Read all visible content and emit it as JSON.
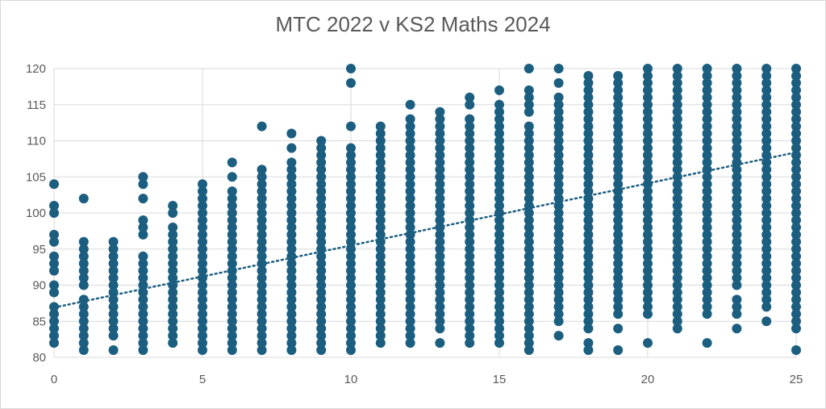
{
  "chart_data": {
    "type": "scatter",
    "title": "MTC 2022 v KS2 Maths 2024",
    "xlabel": "",
    "ylabel": "",
    "xlim": [
      0,
      25
    ],
    "ylim": [
      80,
      120
    ],
    "x_ticks": [
      "0",
      "5",
      "10",
      "15",
      "20",
      "25"
    ],
    "y_ticks": [
      "80",
      "85",
      "90",
      "95",
      "100",
      "105",
      "110",
      "115",
      "120"
    ],
    "grid": true,
    "legend": "none",
    "marker_color": "#1b5e80",
    "trendline": {
      "type": "linear",
      "style": "dotted",
      "color": "#1b5e80",
      "x": [
        0,
        25
      ],
      "y": [
        86.9,
        108.4
      ]
    },
    "columns": [
      {
        "x": 0,
        "y": [
          82,
          83,
          84,
          85,
          86,
          87,
          89,
          90,
          92,
          93,
          94,
          96,
          97,
          100,
          101,
          104
        ]
      },
      {
        "x": 1,
        "y": [
          81,
          82,
          83,
          84,
          85,
          86,
          87,
          88,
          90,
          91,
          92,
          93,
          94,
          95,
          96,
          102
        ]
      },
      {
        "x": 2,
        "y": [
          81,
          83,
          84,
          85,
          86,
          87,
          88,
          89,
          90,
          91,
          92,
          93,
          94,
          95,
          96
        ]
      },
      {
        "x": 3,
        "y": [
          81,
          82,
          83,
          84,
          85,
          86,
          87,
          88,
          89,
          90,
          91,
          92,
          93,
          94,
          97,
          98,
          99,
          102,
          104,
          105
        ]
      },
      {
        "x": 4,
        "y": [
          82,
          83,
          84,
          85,
          86,
          87,
          88,
          89,
          90,
          91,
          92,
          93,
          94,
          95,
          96,
          97,
          98,
          100,
          101
        ]
      },
      {
        "x": 5,
        "y": [
          81,
          82,
          83,
          84,
          85,
          86,
          87,
          88,
          89,
          90,
          91,
          92,
          93,
          94,
          95,
          96,
          97,
          98,
          99,
          100,
          101,
          102,
          103,
          104
        ]
      },
      {
        "x": 6,
        "y": [
          81,
          82,
          83,
          84,
          85,
          86,
          87,
          88,
          89,
          90,
          91,
          92,
          93,
          94,
          95,
          96,
          97,
          98,
          99,
          100,
          101,
          102,
          103,
          105,
          107
        ]
      },
      {
        "x": 7,
        "y": [
          81,
          82,
          83,
          84,
          85,
          86,
          87,
          88,
          89,
          90,
          91,
          92,
          93,
          94,
          95,
          96,
          97,
          98,
          99,
          100,
          101,
          102,
          103,
          104,
          105,
          106,
          112
        ]
      },
      {
        "x": 8,
        "y": [
          81,
          82,
          83,
          84,
          85,
          86,
          87,
          88,
          89,
          90,
          91,
          92,
          93,
          94,
          95,
          96,
          97,
          98,
          99,
          100,
          101,
          102,
          103,
          104,
          105,
          106,
          107,
          109,
          111
        ]
      },
      {
        "x": 9,
        "y": [
          81,
          82,
          83,
          84,
          85,
          86,
          87,
          88,
          89,
          90,
          91,
          92,
          93,
          94,
          95,
          96,
          97,
          98,
          99,
          100,
          101,
          102,
          103,
          104,
          105,
          106,
          107,
          108,
          109,
          110
        ]
      },
      {
        "x": 10,
        "y": [
          81,
          82,
          83,
          84,
          85,
          86,
          87,
          88,
          89,
          90,
          91,
          92,
          93,
          94,
          95,
          96,
          97,
          98,
          99,
          100,
          101,
          102,
          103,
          104,
          105,
          106,
          107,
          108,
          109,
          112,
          118,
          120
        ]
      },
      {
        "x": 11,
        "y": [
          82,
          83,
          84,
          85,
          86,
          87,
          88,
          89,
          90,
          91,
          92,
          93,
          94,
          95,
          96,
          97,
          98,
          99,
          100,
          101,
          102,
          103,
          104,
          105,
          106,
          107,
          108,
          109,
          110,
          111,
          112
        ]
      },
      {
        "x": 12,
        "y": [
          82,
          83,
          84,
          85,
          86,
          87,
          88,
          89,
          90,
          91,
          92,
          93,
          94,
          95,
          96,
          97,
          98,
          99,
          100,
          101,
          102,
          103,
          104,
          105,
          106,
          107,
          108,
          109,
          110,
          111,
          112,
          113,
          115
        ]
      },
      {
        "x": 13,
        "y": [
          82,
          84,
          85,
          86,
          87,
          88,
          89,
          90,
          91,
          92,
          93,
          94,
          95,
          96,
          97,
          98,
          99,
          100,
          101,
          102,
          103,
          104,
          105,
          106,
          107,
          108,
          109,
          110,
          111,
          112,
          113,
          114
        ]
      },
      {
        "x": 14,
        "y": [
          82,
          83,
          84,
          85,
          86,
          87,
          88,
          89,
          90,
          91,
          92,
          93,
          94,
          95,
          96,
          97,
          98,
          99,
          100,
          101,
          102,
          103,
          104,
          105,
          106,
          107,
          108,
          109,
          110,
          111,
          112,
          113,
          115,
          116
        ]
      },
      {
        "x": 15,
        "y": [
          82,
          83,
          84,
          85,
          86,
          87,
          88,
          89,
          90,
          91,
          92,
          93,
          94,
          95,
          96,
          97,
          98,
          99,
          100,
          101,
          102,
          103,
          104,
          105,
          106,
          107,
          108,
          109,
          110,
          111,
          112,
          113,
          114,
          115,
          117
        ]
      },
      {
        "x": 16,
        "y": [
          81,
          82,
          83,
          84,
          85,
          86,
          87,
          88,
          89,
          90,
          91,
          92,
          93,
          94,
          95,
          96,
          97,
          98,
          99,
          100,
          101,
          102,
          103,
          104,
          105,
          106,
          107,
          108,
          109,
          110,
          111,
          112,
          114,
          115,
          116,
          117,
          120
        ]
      },
      {
        "x": 17,
        "y": [
          83,
          85,
          86,
          87,
          88,
          89,
          90,
          91,
          92,
          93,
          94,
          95,
          96,
          97,
          98,
          99,
          100,
          101,
          102,
          103,
          104,
          105,
          106,
          107,
          108,
          109,
          110,
          111,
          112,
          113,
          114,
          115,
          116,
          118,
          120
        ]
      },
      {
        "x": 18,
        "y": [
          81,
          82,
          84,
          85,
          86,
          87,
          88,
          89,
          90,
          91,
          92,
          93,
          94,
          95,
          96,
          97,
          98,
          99,
          100,
          101,
          102,
          103,
          104,
          105,
          106,
          107,
          108,
          109,
          110,
          111,
          112,
          113,
          114,
          115,
          116,
          117,
          118,
          119
        ]
      },
      {
        "x": 19,
        "y": [
          81,
          84,
          86,
          87,
          88,
          89,
          90,
          91,
          92,
          93,
          94,
          95,
          96,
          97,
          98,
          99,
          100,
          101,
          102,
          103,
          104,
          105,
          106,
          107,
          108,
          109,
          110,
          111,
          112,
          113,
          114,
          115,
          116,
          117,
          118,
          119
        ]
      },
      {
        "x": 20,
        "y": [
          82,
          86,
          87,
          88,
          89,
          90,
          91,
          92,
          93,
          94,
          95,
          96,
          97,
          98,
          99,
          100,
          101,
          102,
          103,
          104,
          105,
          106,
          107,
          108,
          109,
          110,
          111,
          112,
          113,
          114,
          115,
          116,
          117,
          118,
          119,
          120
        ]
      },
      {
        "x": 21,
        "y": [
          84,
          85,
          86,
          87,
          88,
          89,
          90,
          91,
          92,
          93,
          94,
          95,
          96,
          97,
          98,
          99,
          100,
          101,
          102,
          103,
          104,
          105,
          106,
          107,
          108,
          109,
          110,
          111,
          112,
          113,
          114,
          115,
          116,
          117,
          118,
          119,
          120
        ]
      },
      {
        "x": 22,
        "y": [
          82,
          86,
          87,
          88,
          89,
          90,
          91,
          92,
          93,
          94,
          95,
          96,
          97,
          98,
          99,
          100,
          101,
          102,
          103,
          104,
          105,
          106,
          107,
          108,
          109,
          110,
          111,
          112,
          113,
          114,
          115,
          116,
          117,
          118,
          119,
          120
        ]
      },
      {
        "x": 23,
        "y": [
          84,
          86,
          87,
          88,
          90,
          91,
          92,
          93,
          94,
          95,
          96,
          97,
          98,
          99,
          100,
          101,
          102,
          103,
          104,
          105,
          106,
          107,
          108,
          109,
          110,
          111,
          112,
          113,
          114,
          115,
          116,
          117,
          118,
          119,
          120
        ]
      },
      {
        "x": 24,
        "y": [
          85,
          87,
          88,
          89,
          90,
          91,
          92,
          93,
          94,
          95,
          96,
          97,
          98,
          99,
          100,
          101,
          102,
          103,
          104,
          105,
          106,
          107,
          108,
          109,
          110,
          111,
          112,
          113,
          114,
          115,
          116,
          117,
          118,
          119,
          120
        ]
      },
      {
        "x": 25,
        "y": [
          81,
          84,
          85,
          86,
          87,
          88,
          89,
          90,
          91,
          92,
          93,
          94,
          95,
          96,
          97,
          98,
          99,
          100,
          101,
          102,
          103,
          104,
          105,
          106,
          107,
          108,
          109,
          110,
          111,
          112,
          113,
          114,
          115,
          116,
          117,
          118,
          119,
          120
        ]
      }
    ]
  }
}
